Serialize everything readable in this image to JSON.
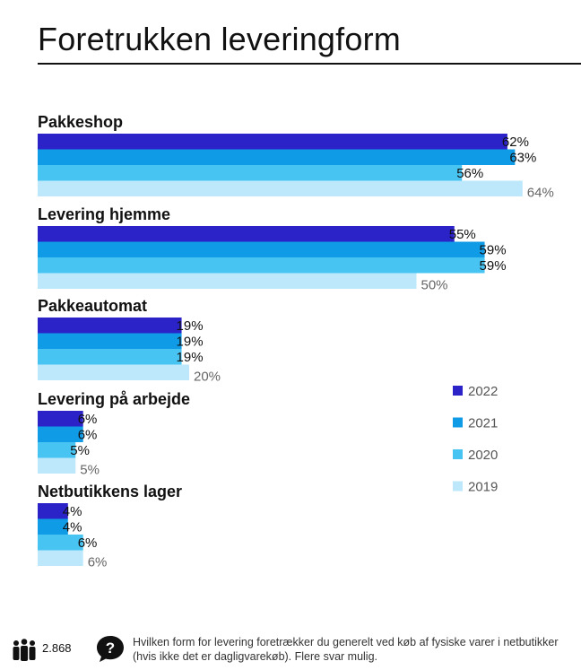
{
  "chart_data": {
    "type": "bar",
    "orientation": "horizontal",
    "title": "Foretrukken leveringform",
    "categories": [
      "Pakkeshop",
      "Levering hjemme",
      "Pakkeautomat",
      "Levering på arbejde",
      "Netbutikkens lager"
    ],
    "series": [
      {
        "name": "2022",
        "color": "#2b22c8",
        "values": [
          62,
          55,
          19,
          6,
          4
        ]
      },
      {
        "name": "2021",
        "color": "#0f9be6",
        "values": [
          63,
          59,
          19,
          6,
          4
        ]
      },
      {
        "name": "2020",
        "color": "#48c4f3",
        "values": [
          56,
          59,
          19,
          5,
          6
        ]
      },
      {
        "name": "2019",
        "color": "#bde8fb",
        "values": [
          64,
          50,
          20,
          5,
          6
        ]
      }
    ],
    "value_suffix": "%",
    "xlim": [
      0,
      100
    ],
    "legend_position": "right",
    "grid": false
  },
  "footer": {
    "respondents": "2.868",
    "respondents_icon": "people-icon",
    "question_icon": "question-bubble-icon",
    "question": "Hvilken form for levering foretrækker du generelt ved køb af fysiske varer i netbutikker (hvis ikke det er dagligvarekøb). Flere svar mulig."
  }
}
